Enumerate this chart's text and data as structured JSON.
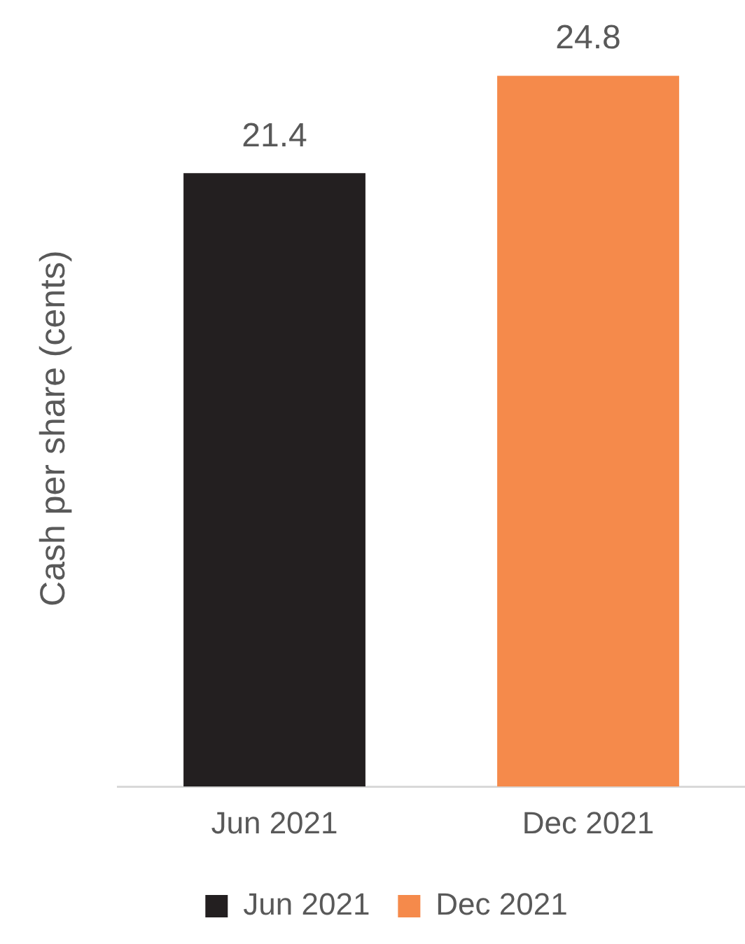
{
  "chart_data": {
    "type": "bar",
    "ylabel": "Cash per share (cents)",
    "categories": [
      "Jun 2021",
      "Dec 2021"
    ],
    "series": [
      {
        "name": "Jun 2021",
        "color": "#231f20",
        "values": [
          21.4,
          null
        ]
      },
      {
        "name": "Dec 2021",
        "color": "#f58a4b",
        "values": [
          null,
          24.8
        ]
      }
    ],
    "data_labels": true,
    "legend": "bottom"
  }
}
